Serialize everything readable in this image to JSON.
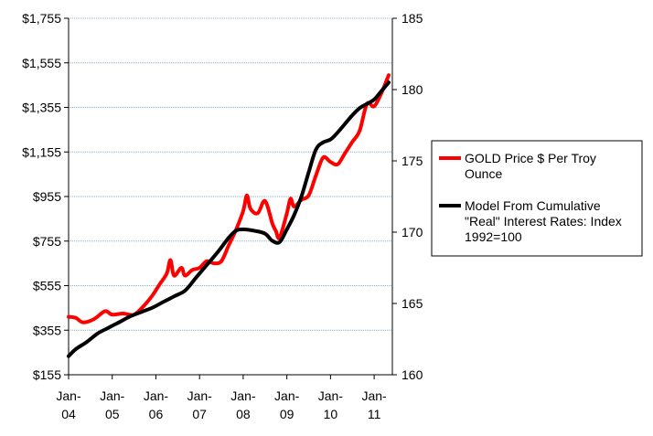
{
  "chart_data": {
    "type": "line",
    "title": "",
    "xlabel": "",
    "ylabel": "",
    "y2label": "",
    "grid": {
      "horizontal": true,
      "vertical": false
    },
    "legend_position": "right",
    "x_range": [
      "2004-01",
      "2011-06"
    ],
    "x_ticks": [
      {
        "top": "Jan-",
        "bottom": "04",
        "date": "2004-01"
      },
      {
        "top": "Jan-",
        "bottom": "05",
        "date": "2005-01"
      },
      {
        "top": "Jan-",
        "bottom": "06",
        "date": "2006-01"
      },
      {
        "top": "Jan-",
        "bottom": "07",
        "date": "2007-01"
      },
      {
        "top": "Jan-",
        "bottom": "08",
        "date": "2008-01"
      },
      {
        "top": "Jan-",
        "bottom": "09",
        "date": "2009-01"
      },
      {
        "top": "Jan-",
        "bottom": "10",
        "date": "2010-01"
      },
      {
        "top": "Jan-",
        "bottom": "11",
        "date": "2011-01"
      }
    ],
    "y_left": {
      "range": [
        155,
        1755
      ],
      "ticks": [
        155,
        355,
        555,
        755,
        955,
        1155,
        1355,
        1555,
        1755
      ],
      "tick_labels": [
        "$155",
        "$355",
        "$555",
        "$755",
        "$955",
        "$1,155",
        "$1,355",
        "$1,555",
        "$1,755"
      ]
    },
    "y_right": {
      "range": [
        160,
        185
      ],
      "ticks": [
        160,
        165,
        170,
        175,
        180,
        185
      ],
      "tick_labels": [
        "160",
        "165",
        "170",
        "175",
        "180",
        "185"
      ]
    },
    "series": [
      {
        "name_lines": [
          "GOLD Price $ Per Troy",
          "Ounce"
        ],
        "axis": "left",
        "color": "#ff0000",
        "x": [
          "2004-01",
          "2004-03",
          "2004-05",
          "2004-08",
          "2004-11",
          "2005-01",
          "2005-04",
          "2005-07",
          "2005-10",
          "2005-12",
          "2006-02",
          "2006-04",
          "2006-05",
          "2006-06",
          "2006-08",
          "2006-09",
          "2006-11",
          "2007-01",
          "2007-03",
          "2007-05",
          "2007-07",
          "2007-09",
          "2007-11",
          "2008-01",
          "2008-02",
          "2008-03",
          "2008-05",
          "2008-07",
          "2008-09",
          "2008-10",
          "2008-11",
          "2009-01",
          "2009-02",
          "2009-03",
          "2009-05",
          "2009-07",
          "2009-09",
          "2009-11",
          "2010-01",
          "2010-03",
          "2010-05",
          "2010-07",
          "2010-09",
          "2010-11",
          "2011-01",
          "2011-03",
          "2011-05"
        ],
        "values": [
          415,
          410,
          390,
          405,
          440,
          425,
          430,
          425,
          470,
          510,
          560,
          610,
          670,
          600,
          635,
          600,
          625,
          635,
          665,
          655,
          665,
          735,
          805,
          890,
          960,
          900,
          880,
          935,
          835,
          800,
          770,
          880,
          945,
          910,
          940,
          960,
          1050,
          1130,
          1110,
          1100,
          1150,
          1200,
          1250,
          1370,
          1360,
          1420,
          1500
        ]
      },
      {
        "name_lines": [
          "Model From Cumulative",
          "\"Real\" Interest Rates: Index",
          "1992=100"
        ],
        "axis": "right",
        "color": "#000000",
        "x": [
          "2004-01",
          "2004-03",
          "2004-06",
          "2004-09",
          "2004-12",
          "2005-03",
          "2005-06",
          "2005-09",
          "2005-12",
          "2006-03",
          "2006-06",
          "2006-09",
          "2006-12",
          "2007-03",
          "2007-06",
          "2007-09",
          "2007-11",
          "2008-01",
          "2008-04",
          "2008-07",
          "2008-09",
          "2008-11",
          "2009-01",
          "2009-03",
          "2009-05",
          "2009-07",
          "2009-09",
          "2009-11",
          "2010-01",
          "2010-03",
          "2010-05",
          "2010-07",
          "2010-09",
          "2010-11",
          "2011-01",
          "2011-03",
          "2011-05"
        ],
        "values": [
          161.3,
          161.8,
          162.3,
          162.9,
          163.3,
          163.7,
          164.1,
          164.4,
          164.7,
          165.1,
          165.5,
          165.9,
          166.8,
          167.7,
          168.6,
          169.6,
          170.1,
          170.2,
          170.1,
          169.9,
          169.4,
          169.3,
          170.2,
          171.2,
          172.5,
          174.2,
          175.8,
          176.3,
          176.5,
          177.0,
          177.6,
          178.2,
          178.7,
          179.0,
          179.3,
          179.9,
          180.5
        ]
      }
    ]
  }
}
